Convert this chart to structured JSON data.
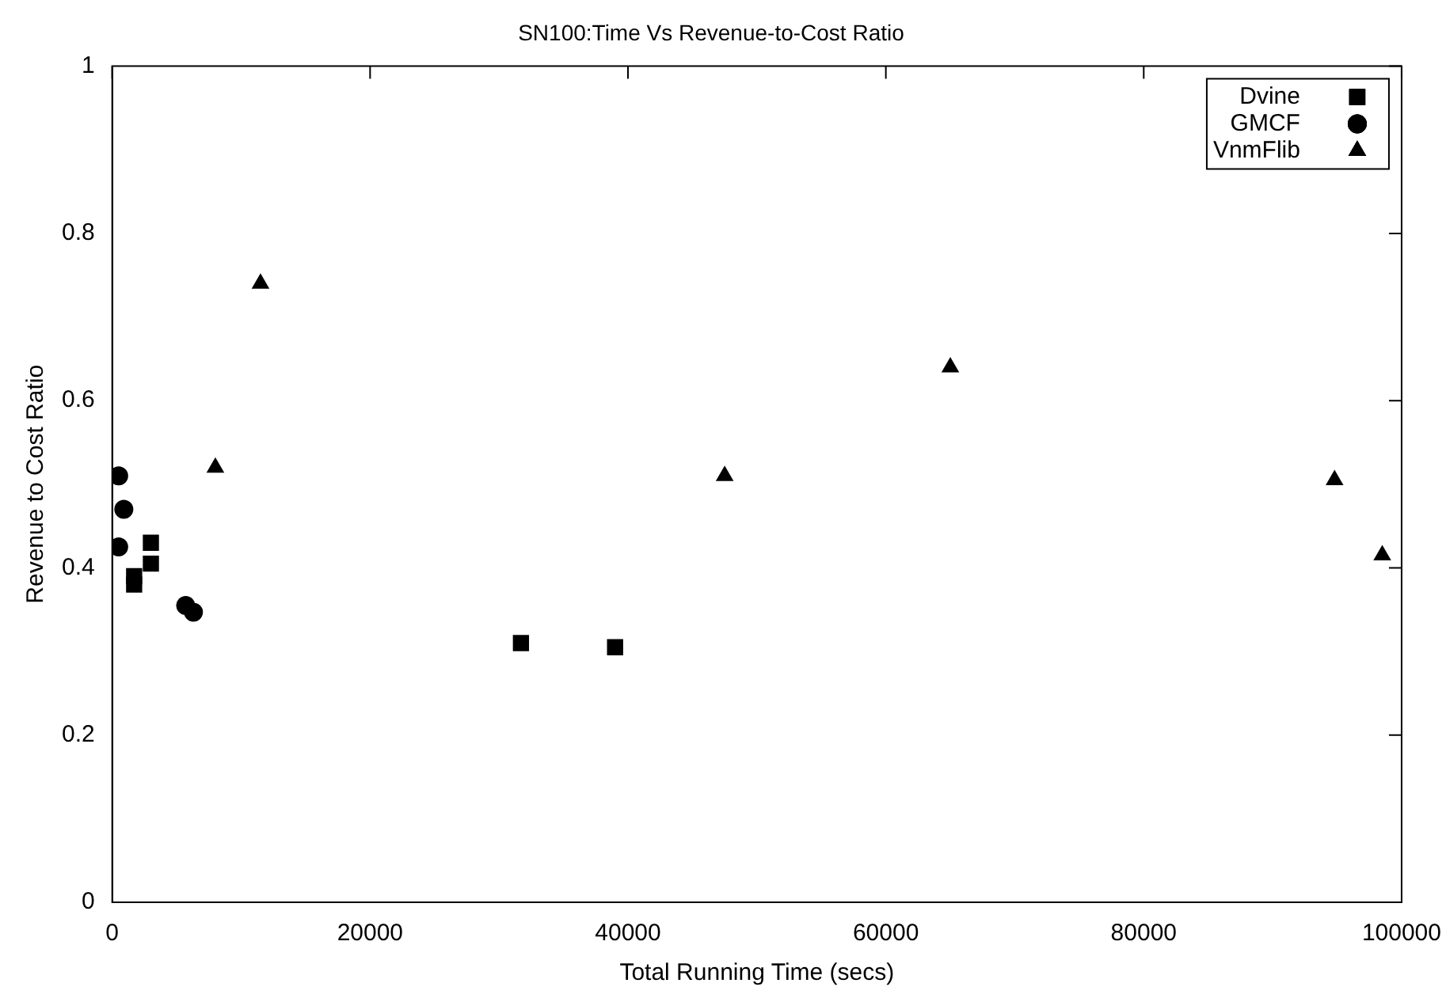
{
  "chart_data": {
    "type": "scatter",
    "title": "SN100:Time Vs Revenue-to-Cost Ratio",
    "xlabel": "Total Running Time (secs)",
    "ylabel": "Revenue to Cost Ratio",
    "xlim": [
      0,
      100000
    ],
    "xticks": [
      0,
      20000,
      40000,
      60000,
      80000,
      100000
    ],
    "ylim": [
      0,
      1
    ],
    "yticks": [
      0,
      0.2,
      0.4,
      0.6,
      0.8,
      1
    ],
    "grid": false,
    "legend": "top right",
    "series": [
      {
        "name": "Dvine",
        "color": "#000000",
        "marker": "square",
        "x": [
          1700,
          1700,
          3000,
          3000,
          31700,
          39000
        ],
        "values": [
          0.39,
          0.38,
          0.43,
          0.405,
          0.31,
          0.305
        ]
      },
      {
        "name": "GMCF",
        "color": "#000000",
        "marker": "circle",
        "x": [
          500,
          900,
          500,
          5700,
          6300
        ],
        "values": [
          0.51,
          0.47,
          0.425,
          0.355,
          0.347
        ]
      },
      {
        "name": "VnmFlib",
        "color": "#000000",
        "marker": "triangle",
        "x": [
          8000,
          11500,
          47500,
          65000,
          94800,
          98500
        ],
        "values": [
          0.52,
          0.74,
          0.51,
          0.64,
          0.505,
          0.415
        ]
      }
    ]
  }
}
